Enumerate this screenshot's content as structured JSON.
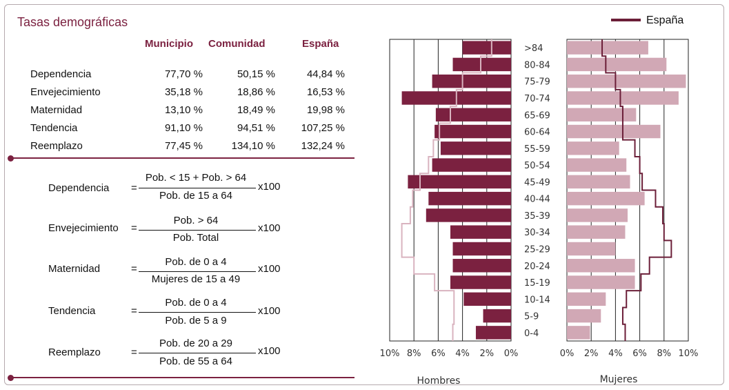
{
  "rates": {
    "title": "Tasas demográficas",
    "columns": [
      "Municipio",
      "Comunidad",
      "España"
    ],
    "rows": [
      {
        "label": "Dependencia",
        "values": [
          "77,70 %",
          "50,15 %",
          "44,84 %"
        ]
      },
      {
        "label": "Envejecimiento",
        "values": [
          "35,18 %",
          "18,86 %",
          "16,53 %"
        ]
      },
      {
        "label": "Maternidad",
        "values": [
          "13,10 %",
          "18,49 %",
          "19,98 %"
        ]
      },
      {
        "label": "Tendencia",
        "values": [
          "91,10 %",
          "94,51 %",
          "107,25 %"
        ]
      },
      {
        "label": "Reemplazo",
        "values": [
          "77,45 %",
          "134,10 %",
          "132,24 %"
        ]
      }
    ]
  },
  "formulas": [
    {
      "label": "Dependencia",
      "numerator": "Pob. < 15 + Pob. > 64",
      "denominator": "Pob. de 15 a 64",
      "factor": "x100"
    },
    {
      "label": "Envejecimiento",
      "numerator": "Pob. > 64",
      "denominator": "Pob. Total",
      "factor": "x100"
    },
    {
      "label": "Maternidad",
      "numerator": "Pob. de 0 a 4",
      "denominator": "Mujeres de 15 a 49",
      "factor": "x100"
    },
    {
      "label": "Tendencia",
      "numerator": "Pob. de 0 a 4",
      "denominator": "Pob. de 5 a 9",
      "factor": "x100"
    },
    {
      "label": "Reemplazo",
      "numerator": "Pob. de 20 a 29",
      "denominator": "Pob. de 55 a 64",
      "factor": "x100"
    }
  ],
  "colors": {
    "accent": "#7b2140",
    "men_bar": "#7b2140",
    "women_bar": "#d1a8b5",
    "men_line": "#d9b3bf",
    "women_line": "#6b1e38"
  },
  "chart_data": {
    "type": "bar",
    "subtype": "population-pyramid",
    "legend": {
      "label": "España",
      "placement": "top-right"
    },
    "age_groups": [
      "0-4",
      "5-9",
      "10-14",
      "15-19",
      "20-24",
      "25-29",
      "30-34",
      "35-39",
      "40-44",
      "45-49",
      "50-54",
      "55-59",
      "60-64",
      "65-69",
      "70-74",
      "75-79",
      "80-84",
      ">84"
    ],
    "men": {
      "xlabel": "Hombres",
      "ticks": [
        "10%",
        "8%",
        "6%",
        "4%",
        "2%",
        "0%"
      ],
      "xlim": [
        0,
        10
      ],
      "municipio": [
        2.9,
        2.3,
        3.9,
        5.0,
        4.8,
        4.8,
        5.0,
        7.0,
        6.8,
        8.5,
        6.5,
        5.8,
        6.3,
        6.2,
        9.0,
        6.5,
        4.8,
        4.0
      ],
      "espana": [
        4.8,
        4.7,
        4.7,
        6.3,
        8.0,
        9.0,
        9.0,
        8.3,
        8.1,
        7.5,
        6.8,
        6.4,
        5.9,
        5.0,
        4.5,
        4.0,
        2.5,
        1.6
      ]
    },
    "women": {
      "xlabel": "Mujeres",
      "ticks": [
        "0%",
        "2%",
        "4%",
        "6%",
        "8%",
        "10%"
      ],
      "xlim": [
        0,
        10
      ],
      "municipio": [
        1.9,
        2.8,
        3.2,
        5.6,
        5.6,
        4.0,
        4.8,
        5.0,
        6.4,
        5.2,
        4.9,
        4.3,
        7.7,
        5.7,
        9.2,
        9.8,
        8.2,
        6.7
      ],
      "espana": [
        4.8,
        4.6,
        4.9,
        6.1,
        6.8,
        8.6,
        8.0,
        7.9,
        7.3,
        6.2,
        6.0,
        5.6,
        4.6,
        4.6,
        4.4,
        4.0,
        3.2,
        2.9
      ]
    }
  }
}
